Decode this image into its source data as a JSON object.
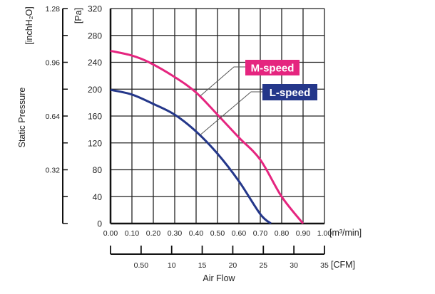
{
  "chart_data": {
    "type": "line",
    "xlabel": "Air Flow",
    "ylabel": "Static Pressure",
    "x_unit": "[m³/min]",
    "x2_unit": "[CFM]",
    "y_unit": "[Pa]",
    "y2_unit": "[inchH₂O]",
    "xlim": [
      0,
      1.0
    ],
    "ylim": [
      0,
      320
    ],
    "grid": true,
    "x_ticks": [
      "0.00",
      "0.10",
      "0.20",
      "0.30",
      "0.40",
      "0.50",
      "0.60",
      "0.70",
      "0.80",
      "0.90",
      "1.00"
    ],
    "x2_ticks": [
      "0.50",
      "10",
      "15",
      "20",
      "25",
      "30",
      "35"
    ],
    "y_ticks": [
      "0",
      "40",
      "80",
      "120",
      "160",
      "200",
      "240",
      "280",
      "320"
    ],
    "y2_ticks": [
      "0.32",
      "0.64",
      "0.96",
      "1.28"
    ],
    "series": [
      {
        "name": "M-speed",
        "color": "#e5257f",
        "x": [
          0,
          0.1,
          0.18,
          0.3,
          0.4,
          0.5,
          0.6,
          0.7,
          0.8,
          0.9
        ],
        "y": [
          257,
          250,
          240,
          218,
          195,
          162,
          128,
          95,
          40,
          0
        ]
      },
      {
        "name": "L-speed",
        "color": "#24378a",
        "x": [
          0,
          0.1,
          0.2,
          0.3,
          0.4,
          0.5,
          0.6,
          0.7,
          0.75
        ],
        "y": [
          199,
          192,
          178,
          162,
          137,
          104,
          63,
          14,
          0
        ]
      }
    ]
  }
}
